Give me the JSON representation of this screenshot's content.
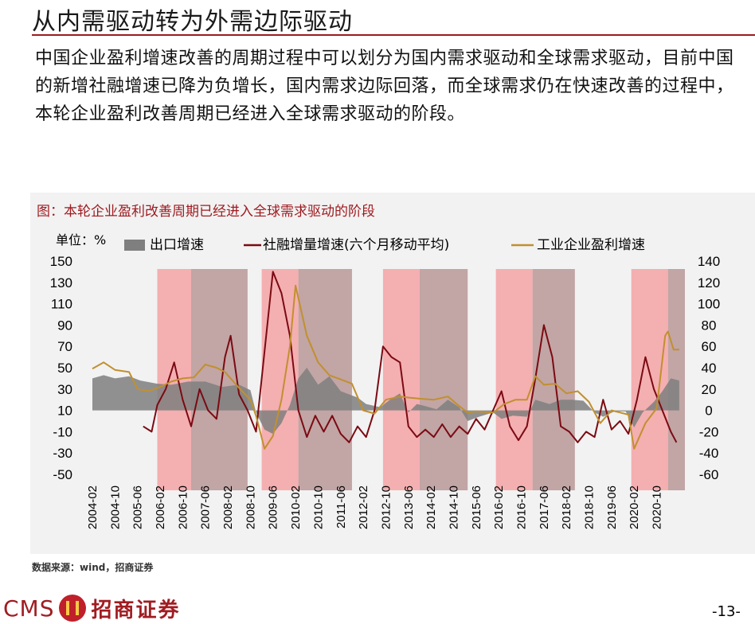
{
  "page": {
    "title": "从内需驱动转为外需边际驱动",
    "paragraph": "中国企业盈利增速改善的周期过程中可以划分为国内需求驱动和全球需求驱动，目前中国的新增社融增速已降为负增长，国内需求边际回落，而全球需求仍在快速改善的过程中，本轮企业盈利改善周期已经进入全球需求驱动的阶段。",
    "source": "数据来源：wind，招商证券",
    "brand_cms": "CMS",
    "brand_name": "招商证券",
    "page_number": "-13-"
  },
  "chart_data": {
    "type": "area",
    "title": "图：本轮企业盈利改善周期已经进入全球需求驱动的阶段",
    "unit_label": "单位：%",
    "x_tick_labels": [
      "2004-02",
      "2004-10",
      "2005-06",
      "2006-02",
      "2006-10",
      "2007-06",
      "2008-02",
      "2008-10",
      "2009-06",
      "2010-02",
      "2010-10",
      "2011-06",
      "2012-02",
      "2012-10",
      "2013-06",
      "2014-02",
      "2014-10",
      "2015-06",
      "2016-02",
      "2016-10",
      "2017-06",
      "2018-02",
      "2018-10",
      "2019-06",
      "2020-02",
      "2020-10"
    ],
    "x_range": [
      "2004-02",
      "2021-08"
    ],
    "y_left": {
      "range": [
        -50,
        150
      ],
      "ticks": [
        150,
        130,
        110,
        90,
        70,
        50,
        30,
        10,
        -10,
        -30,
        -50
      ]
    },
    "y_right": {
      "range": [
        -60,
        140
      ],
      "ticks": [
        140,
        120,
        100,
        80,
        60,
        40,
        20,
        0,
        -20,
        -40,
        -60
      ]
    },
    "legend_placement": "top",
    "shaded_periods": [
      {
        "kind": "domestic",
        "start": "2006-01",
        "end": "2007-01"
      },
      {
        "kind": "global",
        "start": "2007-01",
        "end": "2008-09"
      },
      {
        "kind": "domestic",
        "start": "2009-02",
        "end": "2010-03"
      },
      {
        "kind": "global",
        "start": "2010-03",
        "end": "2011-10"
      },
      {
        "kind": "domestic",
        "start": "2012-09",
        "end": "2013-10"
      },
      {
        "kind": "global",
        "start": "2013-10",
        "end": "2015-03"
      },
      {
        "kind": "domestic",
        "start": "2016-01",
        "end": "2017-02"
      },
      {
        "kind": "global",
        "start": "2017-02",
        "end": "2018-05"
      },
      {
        "kind": "domestic",
        "start": "2020-01",
        "end": "2021-02"
      },
      {
        "kind": "global",
        "start": "2021-02",
        "end": "2021-08"
      }
    ],
    "series": [
      {
        "name": "出口增速",
        "axis": "right",
        "style": "area",
        "color": "#7f7f7f",
        "points": [
          [
            "2004-02",
            30
          ],
          [
            "2004-06",
            33
          ],
          [
            "2004-10",
            30
          ],
          [
            "2005-03",
            32
          ],
          [
            "2005-07",
            28
          ],
          [
            "2006-01",
            25
          ],
          [
            "2006-06",
            24
          ],
          [
            "2006-12",
            27
          ],
          [
            "2007-06",
            27
          ],
          [
            "2007-12",
            22
          ],
          [
            "2008-06",
            24
          ],
          [
            "2008-10",
            19
          ],
          [
            "2008-12",
            -2
          ],
          [
            "2009-03",
            -18
          ],
          [
            "2009-06",
            -22
          ],
          [
            "2009-09",
            -12
          ],
          [
            "2009-12",
            5
          ],
          [
            "2010-03",
            30
          ],
          [
            "2010-06",
            40
          ],
          [
            "2010-10",
            24
          ],
          [
            "2011-02",
            32
          ],
          [
            "2011-06",
            18
          ],
          [
            "2011-12",
            12
          ],
          [
            "2012-03",
            6
          ],
          [
            "2012-08",
            3
          ],
          [
            "2012-12",
            11
          ],
          [
            "2013-03",
            16
          ],
          [
            "2013-06",
            -2
          ],
          [
            "2013-09",
            6
          ],
          [
            "2013-12",
            4
          ],
          [
            "2014-04",
            1
          ],
          [
            "2014-08",
            10
          ],
          [
            "2014-12",
            3
          ],
          [
            "2015-03",
            -10
          ],
          [
            "2015-07",
            -6
          ],
          [
            "2015-12",
            -2
          ],
          [
            "2016-03",
            -8
          ],
          [
            "2016-07",
            -5
          ],
          [
            "2016-12",
            -6
          ],
          [
            "2017-03",
            10
          ],
          [
            "2017-08",
            6
          ],
          [
            "2017-12",
            10
          ],
          [
            "2018-04",
            10
          ],
          [
            "2018-08",
            9
          ],
          [
            "2018-12",
            -2
          ],
          [
            "2019-03",
            -6
          ],
          [
            "2019-07",
            -1
          ],
          [
            "2019-11",
            -1
          ],
          [
            "2020-02",
            -16
          ],
          [
            "2020-05",
            -2
          ],
          [
            "2020-09",
            8
          ],
          [
            "2020-12",
            18
          ],
          [
            "2021-03",
            30
          ],
          [
            "2021-06",
            28
          ]
        ]
      },
      {
        "name": "社融增量增速(六个月移动平均)",
        "axis": "left",
        "style": "line",
        "color": "#7b0a12",
        "points": [
          [
            "2005-08",
            -5
          ],
          [
            "2005-11",
            -10
          ],
          [
            "2006-01",
            15
          ],
          [
            "2006-04",
            30
          ],
          [
            "2006-07",
            55
          ],
          [
            "2006-10",
            20
          ],
          [
            "2007-01",
            -5
          ],
          [
            "2007-04",
            30
          ],
          [
            "2007-07",
            10
          ],
          [
            "2007-10",
            2
          ],
          [
            "2008-01",
            60
          ],
          [
            "2008-03",
            80
          ],
          [
            "2008-06",
            25
          ],
          [
            "2008-09",
            10
          ],
          [
            "2008-12",
            -10
          ],
          [
            "2009-02",
            40
          ],
          [
            "2009-06",
            140
          ],
          [
            "2009-09",
            120
          ],
          [
            "2009-12",
            80
          ],
          [
            "2010-03",
            10
          ],
          [
            "2010-06",
            -15
          ],
          [
            "2010-09",
            5
          ],
          [
            "2010-12",
            -10
          ],
          [
            "2011-03",
            5
          ],
          [
            "2011-06",
            -12
          ],
          [
            "2011-09",
            -20
          ],
          [
            "2011-12",
            -5
          ],
          [
            "2012-03",
            -15
          ],
          [
            "2012-06",
            10
          ],
          [
            "2012-09",
            70
          ],
          [
            "2012-12",
            60
          ],
          [
            "2013-03",
            55
          ],
          [
            "2013-06",
            -5
          ],
          [
            "2013-09",
            -15
          ],
          [
            "2013-12",
            -8
          ],
          [
            "2014-03",
            -15
          ],
          [
            "2014-06",
            -3
          ],
          [
            "2014-09",
            -15
          ],
          [
            "2014-12",
            -5
          ],
          [
            "2015-03",
            -12
          ],
          [
            "2015-06",
            2
          ],
          [
            "2015-09",
            -8
          ],
          [
            "2015-12",
            10
          ],
          [
            "2016-03",
            28
          ],
          [
            "2016-06",
            -5
          ],
          [
            "2016-09",
            -18
          ],
          [
            "2016-12",
            -5
          ],
          [
            "2017-03",
            40
          ],
          [
            "2017-06",
            90
          ],
          [
            "2017-09",
            60
          ],
          [
            "2017-12",
            -5
          ],
          [
            "2018-03",
            -10
          ],
          [
            "2018-06",
            -20
          ],
          [
            "2018-09",
            -10
          ],
          [
            "2018-12",
            -15
          ],
          [
            "2019-03",
            20
          ],
          [
            "2019-06",
            -8
          ],
          [
            "2019-09",
            0
          ],
          [
            "2019-12",
            -12
          ],
          [
            "2020-03",
            20
          ],
          [
            "2020-06",
            60
          ],
          [
            "2020-09",
            30
          ],
          [
            "2020-12",
            10
          ],
          [
            "2021-03",
            -10
          ],
          [
            "2021-05",
            -20
          ]
        ]
      },
      {
        "name": "工业企业盈利增速",
        "axis": "right",
        "style": "line",
        "color": "#c1902f",
        "points": [
          [
            "2004-02",
            39
          ],
          [
            "2004-06",
            45
          ],
          [
            "2004-10",
            38
          ],
          [
            "2005-03",
            36
          ],
          [
            "2005-06",
            20
          ],
          [
            "2005-10",
            18
          ],
          [
            "2006-02",
            22
          ],
          [
            "2006-06",
            27
          ],
          [
            "2006-10",
            30
          ],
          [
            "2007-02",
            31
          ],
          [
            "2007-06",
            43
          ],
          [
            "2007-10",
            40
          ],
          [
            "2008-01",
            36
          ],
          [
            "2008-06",
            21
          ],
          [
            "2008-10",
            10
          ],
          [
            "2008-12",
            -5
          ],
          [
            "2009-03",
            -36
          ],
          [
            "2009-06",
            -24
          ],
          [
            "2009-09",
            10
          ],
          [
            "2009-12",
            60
          ],
          [
            "2010-02",
            117
          ],
          [
            "2010-06",
            70
          ],
          [
            "2010-10",
            45
          ],
          [
            "2011-02",
            33
          ],
          [
            "2011-06",
            29
          ],
          [
            "2011-10",
            25
          ],
          [
            "2012-02",
            0
          ],
          [
            "2012-06",
            -3
          ],
          [
            "2012-10",
            10
          ],
          [
            "2013-03",
            13
          ],
          [
            "2013-06",
            12
          ],
          [
            "2013-10",
            11
          ],
          [
            "2014-03",
            10
          ],
          [
            "2014-08",
            13
          ],
          [
            "2014-12",
            4
          ],
          [
            "2015-03",
            -2
          ],
          [
            "2015-06",
            -1
          ],
          [
            "2015-12",
            -2
          ],
          [
            "2016-04",
            6
          ],
          [
            "2016-08",
            10
          ],
          [
            "2016-12",
            10
          ],
          [
            "2017-03",
            32
          ],
          [
            "2017-06",
            24
          ],
          [
            "2017-10",
            25
          ],
          [
            "2018-02",
            16
          ],
          [
            "2018-06",
            18
          ],
          [
            "2018-10",
            8
          ],
          [
            "2019-02",
            -12
          ],
          [
            "2019-06",
            0
          ],
          [
            "2019-09",
            -2
          ],
          [
            "2019-12",
            -4
          ],
          [
            "2020-02",
            -36
          ],
          [
            "2020-06",
            -12
          ],
          [
            "2020-10",
            2
          ],
          [
            "2021-01",
            70
          ],
          [
            "2021-02",
            74
          ],
          [
            "2021-04",
            57
          ],
          [
            "2021-06",
            57
          ]
        ]
      }
    ]
  }
}
